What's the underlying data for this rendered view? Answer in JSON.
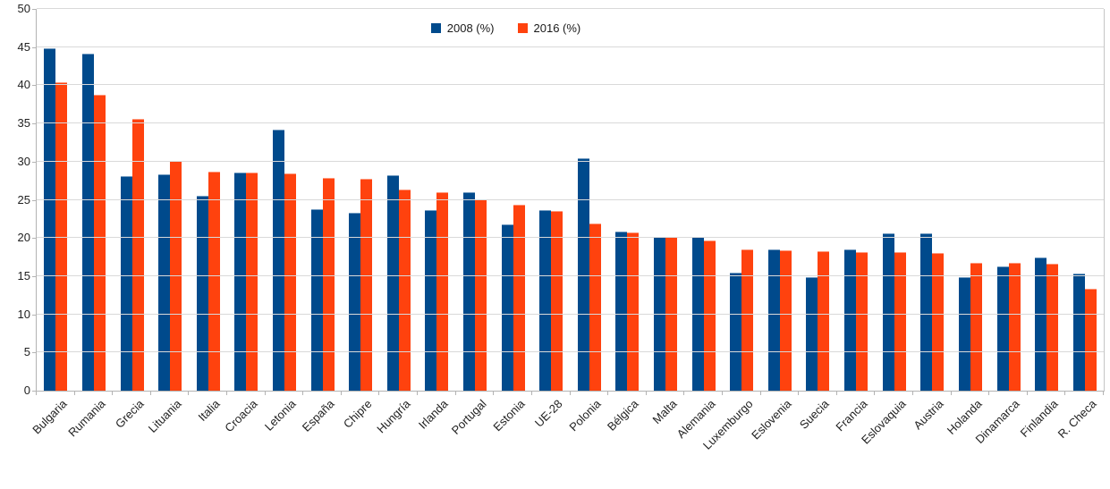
{
  "chart_data": {
    "type": "bar",
    "title": "",
    "xlabel": "",
    "ylabel": "",
    "legend_position": "top-center",
    "grid": true,
    "ylim": [
      0,
      50
    ],
    "yticks": [
      0,
      5,
      10,
      15,
      20,
      25,
      30,
      35,
      40,
      45,
      50
    ],
    "categories": [
      "Bulgaria",
      "Rumania",
      "Grecia",
      "Lituania",
      "Italia",
      "Croacia",
      "Letonia",
      "España",
      "Chipre",
      "Hungría",
      "Irlanda",
      "Portugal",
      "Estonia",
      "UE-28",
      "Polonia",
      "Bélgica",
      "Malta",
      "Alemania",
      "Luxemburgo",
      "Eslovenia",
      "Suecia",
      "Francia",
      "Eslovaquia",
      "Austria",
      "Holanda",
      "Dinamarca",
      "Finlandia",
      "R. Checa"
    ],
    "series": [
      {
        "name": "2008 (%)",
        "color": "#004a8c",
        "values": [
          44.8,
          44.2,
          28.1,
          28.3,
          25.5,
          28.6,
          34.2,
          23.8,
          23.3,
          28.2,
          23.7,
          26.0,
          21.8,
          23.7,
          30.5,
          20.8,
          20.1,
          20.1,
          15.5,
          18.5,
          14.9,
          18.5,
          20.6,
          20.6,
          14.9,
          16.3,
          17.4,
          15.3
        ]
      },
      {
        "name": "2016 (%)",
        "color": "#ff420e",
        "values": [
          40.4,
          38.8,
          35.6,
          30.1,
          28.7,
          28.6,
          28.5,
          27.9,
          27.7,
          26.3,
          26.0,
          25.1,
          24.4,
          23.5,
          21.9,
          20.7,
          20.1,
          19.7,
          18.5,
          18.4,
          18.3,
          18.2,
          18.1,
          18.0,
          16.8,
          16.7,
          16.6,
          13.3
        ]
      }
    ]
  },
  "colors": {
    "gridline": "#d9d9d9",
    "axis": "#b3b3b3",
    "text": "#222222",
    "background": "#ffffff"
  }
}
